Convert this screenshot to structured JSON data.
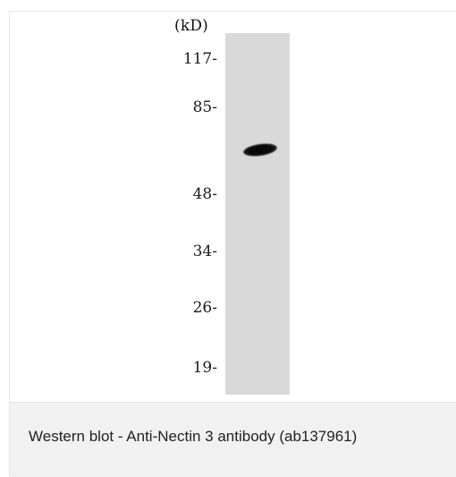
{
  "blot": {
    "unit_label": "(kD)",
    "markers": [
      "117-",
      "85-",
      "48-",
      "34-",
      "26-",
      "19-"
    ]
  },
  "caption": {
    "text": "Western blot - Anti-Nectin 3 antibody (ab137961)"
  },
  "colors": {
    "lane_background": "#d9d9d9",
    "band": "#050505",
    "caption_background": "#f1f1f1"
  }
}
